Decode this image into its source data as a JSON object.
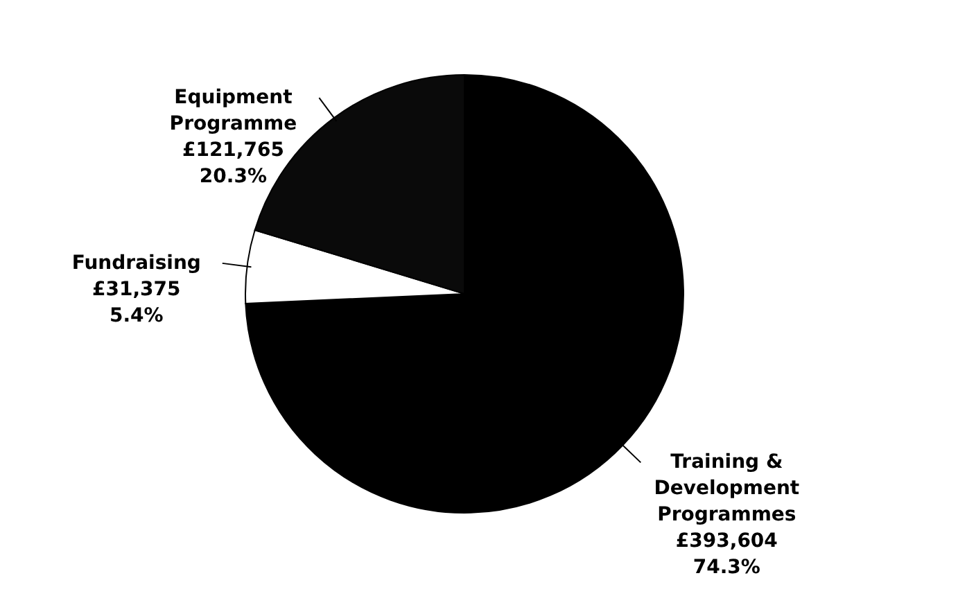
{
  "chart_data": {
    "type": "pie",
    "categories": [
      "Training & Development Programmes",
      "Fundraising",
      "Equipment Programme"
    ],
    "values": [
      74.3,
      5.4,
      20.3
    ],
    "value_labels": [
      "£393,604\n74.3%",
      "£31,375\n5.4%",
      "£121,765\n20.3%"
    ],
    "colors": [
      "#000000",
      "#ffffff",
      "#0a0a0a"
    ]
  }
}
